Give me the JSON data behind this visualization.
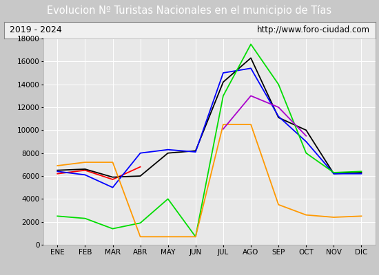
{
  "title": "Evolucion Nº Turistas Nacionales en el municipio de Tías",
  "subtitle_left": "2019 - 2024",
  "subtitle_right": "http://www.foro-ciudad.com",
  "months": [
    "ENE",
    "FEB",
    "MAR",
    "ABR",
    "MAY",
    "JUN",
    "JUL",
    "AGO",
    "SEP",
    "OCT",
    "NOV",
    "DIC"
  ],
  "ylim": [
    0,
    18000
  ],
  "yticks": [
    0,
    2000,
    4000,
    6000,
    8000,
    10000,
    12000,
    14000,
    16000,
    18000
  ],
  "series": {
    "2024": {
      "color": "#ff0000",
      "data": [
        6200,
        6500,
        5700,
        6800,
        null,
        null,
        null,
        null,
        null,
        null,
        null,
        null
      ]
    },
    "2023": {
      "color": "#000000",
      "data": [
        6500,
        6600,
        5900,
        6000,
        8000,
        8200,
        14200,
        16300,
        11100,
        10000,
        6200,
        6300
      ]
    },
    "2022": {
      "color": "#0000ff",
      "data": [
        6400,
        6100,
        5000,
        8000,
        8300,
        8100,
        15000,
        15400,
        11200,
        9000,
        6200,
        6200
      ]
    },
    "2021": {
      "color": "#00dd00",
      "data": [
        2500,
        2300,
        1400,
        1900,
        4000,
        700,
        13000,
        17500,
        14000,
        8000,
        6300,
        6400
      ]
    },
    "2020": {
      "color": "#ff9900",
      "data": [
        6900,
        7200,
        7200,
        700,
        700,
        700,
        10500,
        10500,
        3500,
        2600,
        2400,
        2500
      ]
    },
    "2019": {
      "color": "#aa00cc",
      "data": [
        null,
        null,
        null,
        null,
        null,
        null,
        10100,
        13000,
        12000,
        9500,
        null,
        null
      ]
    }
  },
  "title_bg_color": "#5b8dd9",
  "title_text_color": "#ffffff",
  "subtitle_bg_color": "#f0f0f0",
  "subtitle_border_color": "#888888",
  "plot_bg_color": "#e8e8e8",
  "outer_bg_color": "#c8c8c8",
  "grid_color": "#ffffff",
  "title_fontsize": 10.5,
  "tick_fontsize": 7.5,
  "legend_fontsize": 8
}
